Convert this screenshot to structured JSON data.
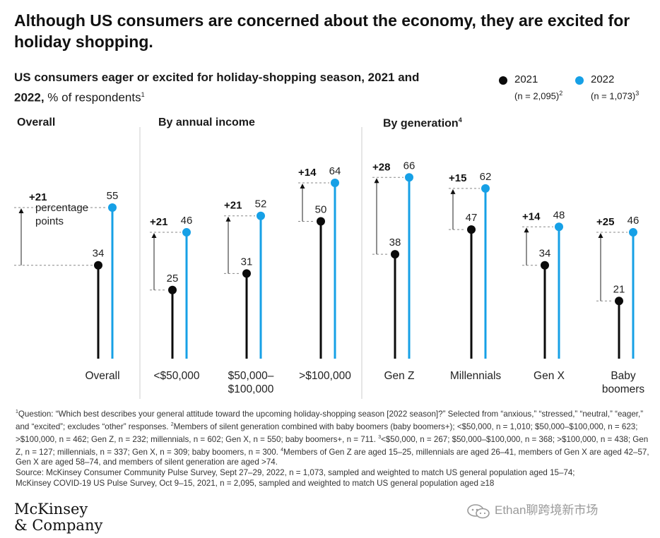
{
  "headline": "Although US consumers are concerned about the economy, they are excited for holiday shopping.",
  "subtitle": {
    "bold": "US consumers eager or excited for holiday-shopping season, 2021 and 2022,",
    "normal": " % of respondents",
    "sup": "1"
  },
  "legend": [
    {
      "year": "2021",
      "n": "(n = 2,095)",
      "sup": "2",
      "color": "#0b0b0b"
    },
    {
      "year": "2022",
      "n": "(n = 1,073)",
      "sup": "3",
      "color": "#16a0e6"
    }
  ],
  "sections": {
    "overall": "Overall",
    "income": "By annual income",
    "generation": "By generation",
    "generation_sup": "4"
  },
  "annotation": {
    "line1": "percentage",
    "line2": "points"
  },
  "chart_data": {
    "type": "lollipop",
    "title": "US consumers eager or excited for holiday-shopping season, 2021 and 2022",
    "ylabel": "% of respondents",
    "ylim": [
      0,
      70
    ],
    "series": [
      {
        "name": "2021",
        "color": "#0b0b0b"
      },
      {
        "name": "2022",
        "color": "#16a0e6"
      }
    ],
    "groups": [
      {
        "label": [
          "Overall"
        ],
        "v2021": 34,
        "v2022": 55,
        "diff": "+21"
      },
      {
        "label": [
          "<$50,000"
        ],
        "v2021": 25,
        "v2022": 46,
        "diff": "+21"
      },
      {
        "label": [
          "$50,000–",
          "$100,000"
        ],
        "v2021": 31,
        "v2022": 52,
        "diff": "+21"
      },
      {
        "label": [
          ">$100,000"
        ],
        "v2021": 50,
        "v2022": 64,
        "diff": "+14"
      },
      {
        "label": [
          "Gen Z"
        ],
        "v2021": 38,
        "v2022": 66,
        "diff": "+28"
      },
      {
        "label": [
          "Millennials"
        ],
        "v2021": 47,
        "v2022": 62,
        "diff": "+15"
      },
      {
        "label": [
          "Gen X"
        ],
        "v2021": 34,
        "v2022": 48,
        "diff": "+14"
      },
      {
        "label": [
          "Baby",
          "boomers"
        ],
        "v2021": 21,
        "v2022": 46,
        "diff": "+25"
      }
    ]
  },
  "footnotes": [
    "Question: “Which best describes your general attitude toward the upcoming holiday-shopping season [2022 season]?” Selected from “anxious,” “stressed,” “neutral,” “eager,” and “excited”; excludes “other” responses.",
    "Members of silent generation combined with baby boomers (baby boomers+); <$50,000, n = 1,010; $50,000–$100,000, n = 623; >$100,000, n = 462; Gen Z, n = 232; millennials, n = 602; Gen X, n = 550; baby boomers+, n = 711.",
    "<$50,000, n = 267; $50,000–$100,000, n = 368; >$100,000, n = 438; Gen Z, n = 127; millennials, n = 337; Gen X, n = 309; baby boomers, n = 300.",
    "Members of Gen Z are aged 15–25, millennials are aged 26–41, members of Gen X are aged 42–57, Gen X are aged 58–74, and members of silent generation are aged >74."
  ],
  "sources": [
    "Source: McKinsey Consumer Community Pulse Survey, Sept 27–29, 2022, n = 1,073, sampled and weighted to match US general population aged 15–74;",
    "McKinsey COVID-19 US Pulse Survey, Oct 9–15, 2021, n = 2,095, sampled and weighted to match US general population aged ≥18"
  ],
  "logo": {
    "line1": "McKinsey",
    "line2": "& Company"
  },
  "watermark": "Ethan聊跨境新市场"
}
